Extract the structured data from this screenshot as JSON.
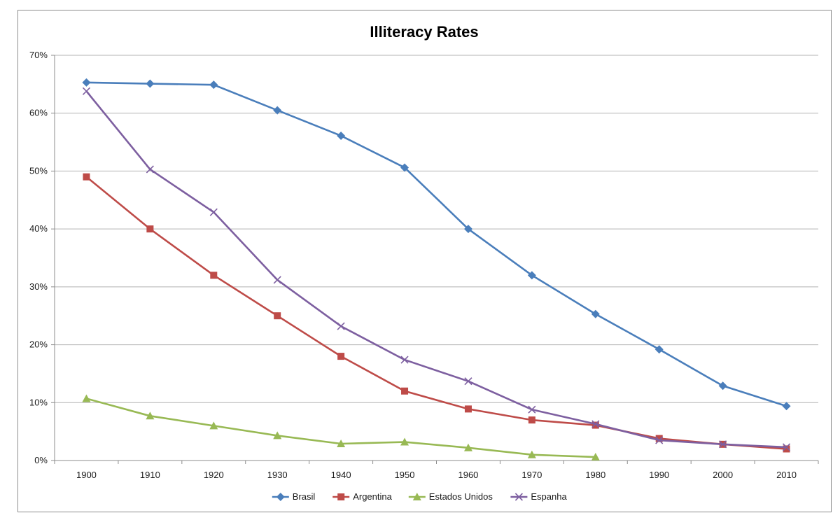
{
  "chart_data": {
    "type": "line",
    "title": "Illiteracy Rates",
    "xlabel": "",
    "ylabel": "",
    "categories": [
      "1900",
      "1910",
      "1920",
      "1930",
      "1940",
      "1950",
      "1960",
      "1970",
      "1980",
      "1990",
      "2000",
      "2010"
    ],
    "ylim": [
      0,
      70
    ],
    "yticks": [
      "0%",
      "10%",
      "20%",
      "30%",
      "40%",
      "50%",
      "60%",
      "70%"
    ],
    "grid": true,
    "legend_position": "bottom",
    "series": [
      {
        "name": "Brasil",
        "color": "#4a7ebb",
        "marker": "diamond",
        "values": [
          65.3,
          65.1,
          64.9,
          60.5,
          56.1,
          50.6,
          40.0,
          32.0,
          25.3,
          19.2,
          12.9,
          9.4
        ]
      },
      {
        "name": "Argentina",
        "color": "#be4b48",
        "marker": "square",
        "values": [
          49.0,
          40.0,
          32.0,
          25.0,
          18.0,
          12.0,
          8.9,
          7.0,
          6.1,
          3.8,
          2.8,
          2.0
        ]
      },
      {
        "name": "Estados Unidos",
        "color": "#98b954",
        "marker": "triangle",
        "values": [
          10.7,
          7.7,
          6.0,
          4.3,
          2.9,
          3.2,
          2.2,
          1.0,
          0.6,
          null,
          null,
          null
        ]
      },
      {
        "name": "Espanha",
        "color": "#7d5fa0",
        "marker": "x",
        "values": [
          63.8,
          50.3,
          42.9,
          31.2,
          23.2,
          17.4,
          13.7,
          8.8,
          6.3,
          3.5,
          2.8,
          2.3
        ]
      }
    ]
  }
}
